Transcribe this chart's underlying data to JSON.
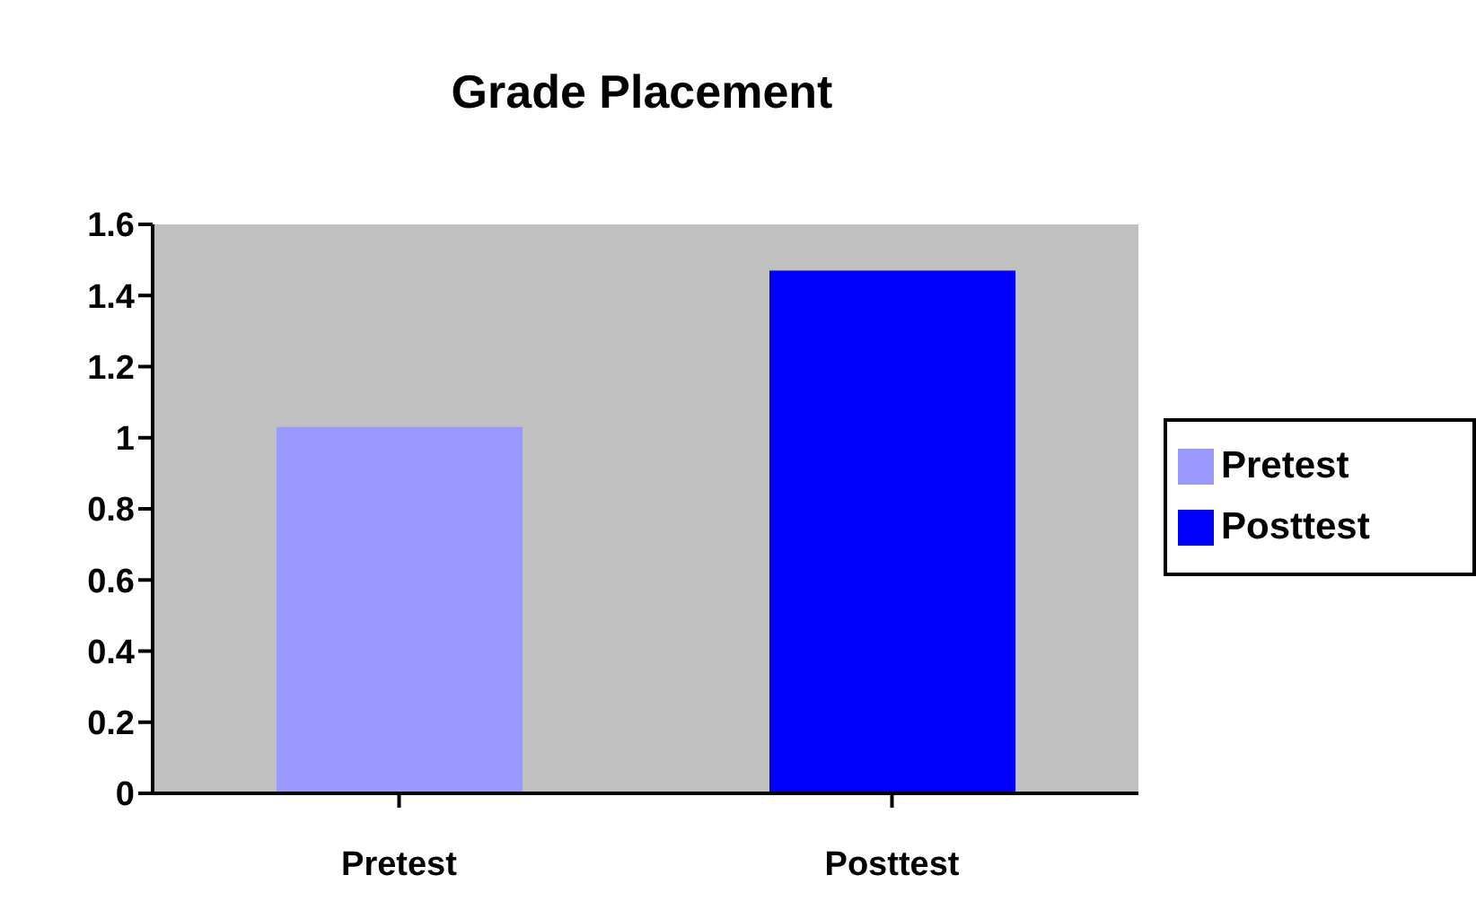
{
  "chart_data": {
    "type": "bar",
    "title": "Grade Placement",
    "categories": [
      "Pretest",
      "Posttest"
    ],
    "series": [
      {
        "name": "Pretest",
        "color": "#9999ff",
        "values": [
          1.03,
          null
        ]
      },
      {
        "name": "Posttest",
        "color": "#0000ff",
        "values": [
          null,
          1.47
        ]
      }
    ],
    "ylim": [
      0,
      1.6
    ],
    "yticks": [
      0,
      0.2,
      0.4,
      0.6,
      0.8,
      1,
      1.2,
      1.4,
      1.6
    ],
    "grid": false,
    "legend": "right"
  }
}
